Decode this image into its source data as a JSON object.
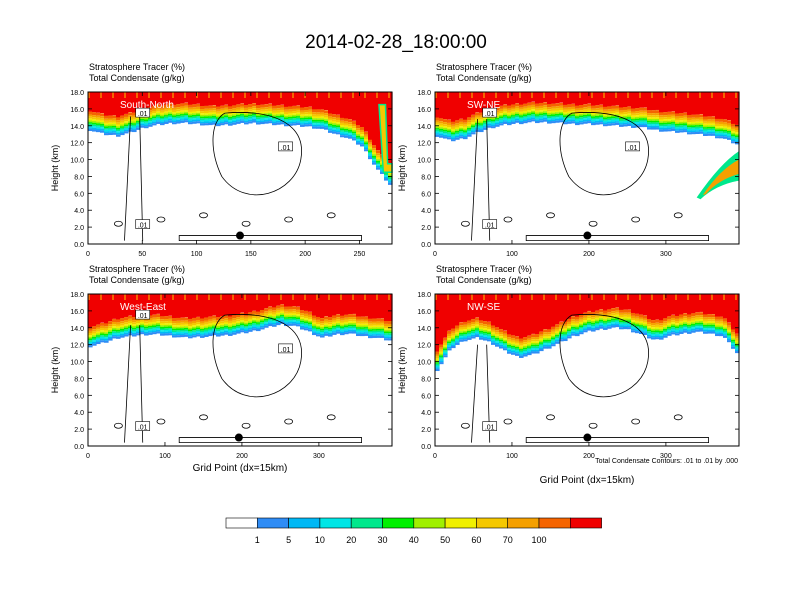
{
  "title": "2014-02-28_18:00:00",
  "palette": {
    "levels": [
      "",
      "1",
      "5",
      "10",
      "20",
      "30",
      "40",
      "50",
      "60",
      "70",
      "100"
    ],
    "colors": [
      "#ffffff",
      "#2f8cf5",
      "#00b8f5",
      "#00e6e6",
      "#00e88c",
      "#00f000",
      "#a0f000",
      "#f0f000",
      "#f5c800",
      "#f5a000",
      "#f56400",
      "#f00000"
    ]
  },
  "chart_data": [
    {
      "type": "heatmap",
      "header_line1": "Stratosphere Tracer   (%)",
      "header_line2": "Total Condensate   (g/kg)",
      "panel_label": "South-North",
      "ylabel": "Height (km)",
      "xlabel": "",
      "xlim": [
        0,
        280
      ],
      "ylim": [
        0,
        18
      ],
      "xticks": [
        "0",
        "50",
        "100",
        "150",
        "200",
        "250"
      ],
      "yticks": [
        "0.0",
        "2.0",
        "4.0",
        "6.0",
        "8.0",
        "10.0",
        "12.0",
        "14.0",
        "16.0",
        "18.0"
      ],
      "tropopause_km": [
        15.5,
        15.0,
        14.8,
        15.2,
        15.8,
        16.1,
        16.3,
        16.3,
        16.2,
        16.0,
        16.1,
        16.2,
        16.3,
        16.2,
        16.1,
        16.0,
        15.9,
        15.6,
        15.0,
        14.5,
        13.5,
        11.0,
        9.0
      ],
      "contour_labels": [
        ".01",
        ".01",
        ".01"
      ],
      "marker": {
        "x": 140,
        "y": 1.0
      }
    },
    {
      "type": "heatmap",
      "header_line1": "Stratosphere Tracer   (%)",
      "header_line2": "Total Condensate   (g/kg)",
      "panel_label": "SW-NE",
      "ylabel": "Height (km)",
      "xlabel": "",
      "xlim": [
        0,
        395
      ],
      "ylim": [
        0,
        18
      ],
      "xticks": [
        "0",
        "100",
        "200",
        "300"
      ],
      "yticks": [
        "0.0",
        "2.0",
        "4.0",
        "6.0",
        "8.0",
        "10.0",
        "12.0",
        "14.0",
        "16.0",
        "18.0"
      ],
      "tropopause_km": [
        14.8,
        14.2,
        14.5,
        15.2,
        15.8,
        16.1,
        16.3,
        16.4,
        16.4,
        16.3,
        16.2,
        16.2,
        16.1,
        16.0,
        15.9,
        15.8,
        15.5,
        15.3,
        15.2,
        15.0,
        14.8,
        14.5,
        13.8
      ],
      "contour_labels": [
        ".01",
        ".01",
        ".01"
      ],
      "marker": {
        "x": 198,
        "y": 1.0
      }
    },
    {
      "type": "heatmap",
      "header_line1": "Stratosphere Tracer   (%)",
      "header_line2": "Total Condensate   (g/kg)",
      "panel_label": "West-East",
      "ylabel": "Height (km)",
      "xlabel": "Grid Point (dx=15km)",
      "xlim": [
        0,
        395
      ],
      "ylim": [
        0,
        18
      ],
      "xticks": [
        "0",
        "100",
        "200",
        "300"
      ],
      "yticks": [
        "0.0",
        "2.0",
        "4.0",
        "6.0",
        "8.0",
        "10.0",
        "12.0",
        "14.0",
        "16.0",
        "18.0"
      ],
      "tropopause_km": [
        13.8,
        14.2,
        14.8,
        15.0,
        15.2,
        15.2,
        15.0,
        14.8,
        14.9,
        15.0,
        15.1,
        15.3,
        15.6,
        16.0,
        16.4,
        16.2,
        15.6,
        14.8,
        15.2,
        15.3,
        15.0,
        14.8,
        14.5
      ],
      "contour_labels": [
        ".01",
        ".01",
        ".01"
      ],
      "marker": {
        "x": 196,
        "y": 1.0
      }
    },
    {
      "type": "heatmap",
      "header_line1": "Stratosphere Tracer   (%)",
      "header_line2": "Total Condensate   (g/kg)",
      "panel_label": "NW-SE",
      "ylabel": "Height (km)",
      "xlabel": "Grid Point (dx=15km)",
      "footnote": "Total Condensate Contours: .01 to .01 by .000",
      "xlim": [
        0,
        395
      ],
      "ylim": [
        0,
        18
      ],
      "xticks": [
        "0",
        "100",
        "200",
        "300"
      ],
      "yticks": [
        "0.0",
        "2.0",
        "4.0",
        "6.0",
        "8.0",
        "10.0",
        "12.0",
        "14.0",
        "16.0",
        "18.0"
      ],
      "tropopause_km": [
        11.0,
        13.5,
        14.5,
        14.8,
        14.2,
        13.2,
        12.5,
        12.8,
        13.5,
        14.2,
        15.0,
        15.5,
        15.8,
        16.0,
        15.8,
        15.2,
        14.5,
        15.0,
        15.3,
        15.5,
        15.3,
        15.0,
        13.0
      ],
      "contour_labels": [
        ".01"
      ],
      "marker": {
        "x": 198,
        "y": 1.0
      }
    }
  ]
}
